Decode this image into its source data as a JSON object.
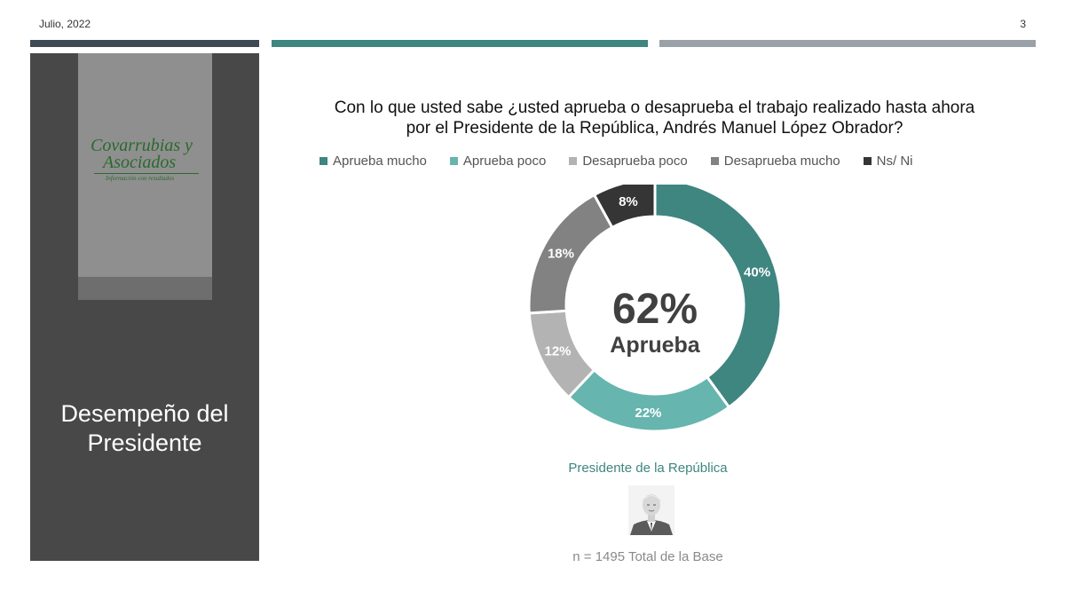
{
  "header": {
    "date": "Julio, 2022",
    "page_number": "3"
  },
  "sidebar": {
    "logo": {
      "line1": "Covarrubias y",
      "line2": "Asociados",
      "tagline": "Información con resultados"
    },
    "section_title_line1": "Desempeño del",
    "section_title_line2": "Presidente"
  },
  "colors": {
    "aprueba_mucho": "#3f8580",
    "aprueba_poco": "#66b5ae",
    "desaprueba_poco": "#b3b3b3",
    "desaprueba_mucho": "#828282",
    "ns_ni": "#353535"
  },
  "chart_data": {
    "type": "pie",
    "title": "Con lo que usted sabe ¿usted aprueba o desaprueba el trabajo realizado hasta ahora por el Presidente de la República, Andrés Manuel López Obrador?",
    "title_line1": "Con lo que usted sabe ¿usted aprueba o desaprueba el trabajo realizado hasta ahora",
    "title_line2": "por el Presidente de la República, Andrés Manuel López Obrador?",
    "donut": true,
    "legend_position": "top",
    "categories": [
      "Aprueba mucho",
      "Aprueba poco",
      "Desaprueba poco",
      "Desaprueba mucho",
      "Ns/ Ni"
    ],
    "values": [
      40,
      22,
      12,
      18,
      8
    ],
    "labels": [
      "40%",
      "22%",
      "12%",
      "18%",
      "8%"
    ],
    "center_value": "62%",
    "center_label": "Aprueba"
  },
  "caption": "Presidente de la República",
  "note": "n = 1495 Total de la Base"
}
